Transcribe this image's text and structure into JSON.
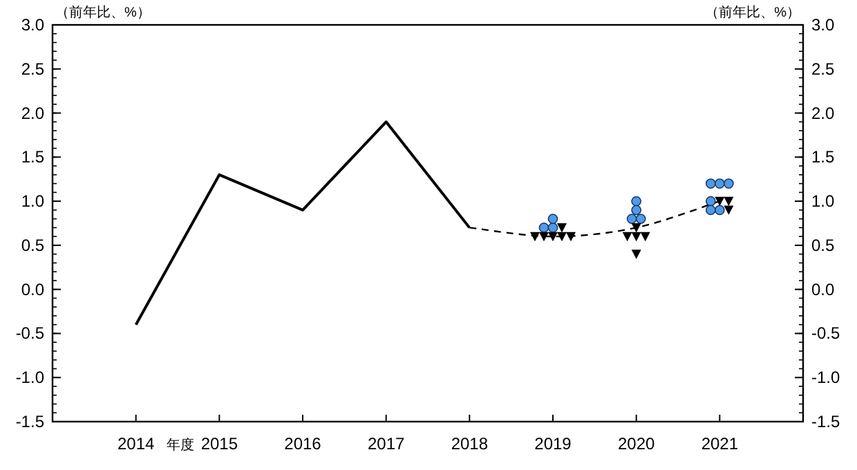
{
  "chart_data": {
    "type": "line",
    "ylabel": "（前年比、%）",
    "y2label": "（前年比、%）",
    "categories": [
      "2014",
      "2015",
      "2016",
      "2017",
      "2018",
      "2019",
      "2020",
      "2021"
    ],
    "annotations": [
      "年度"
    ],
    "ylim": [
      -1.5,
      3.0
    ],
    "yticks": [
      {
        "value": -1.5,
        "label": "-1.5"
      },
      {
        "value": -1.0,
        "label": "-1.0"
      },
      {
        "value": -0.5,
        "label": "-0.5"
      },
      {
        "value": 0,
        "label": "0.0"
      },
      {
        "value": 0.5,
        "label": "0.5"
      },
      {
        "value": 1.0,
        "label": "1.0"
      },
      {
        "value": 1.5,
        "label": "1.5"
      },
      {
        "value": 2.0,
        "label": "2.0"
      },
      {
        "value": 2.5,
        "label": "2.5"
      },
      {
        "value": 3.0,
        "label": "3.0"
      }
    ],
    "y2lim": [
      -1.5,
      3.0
    ],
    "y2ticks": [
      {
        "value": -1.5,
        "label": "-1.5"
      },
      {
        "value": -1.0,
        "label": "-1.0"
      },
      {
        "value": -0.5,
        "label": "-0.5"
      },
      {
        "value": 0,
        "label": "0.0"
      },
      {
        "value": 0.5,
        "label": "0.5"
      },
      {
        "value": 1.0,
        "label": "1.0"
      },
      {
        "value": 1.5,
        "label": "1.5"
      },
      {
        "value": 2.0,
        "label": "2.0"
      },
      {
        "value": 2.5,
        "label": "2.5"
      },
      {
        "value": 3.0,
        "label": "3.0"
      }
    ],
    "grid": false,
    "series": [
      {
        "color": "#000000",
        "line_style": "solid",
        "marker": "none",
        "values": [
          -0.4,
          1.3,
          0.9,
          1.9,
          0.7,
          null,
          null,
          null
        ]
      },
      {
        "color": "#000000",
        "line_style": "dashed",
        "marker": "none",
        "values": [
          null,
          null,
          null,
          null,
          0.7,
          0.6,
          0.7,
          1.0
        ]
      },
      {
        "type": "scatter",
        "color": "#4f9be8",
        "marker": "circle",
        "values": [
          null,
          null,
          null,
          null,
          null,
          0.7,
          1.0,
          1.2
        ]
      },
      {
        "type": "scatter",
        "color": "#4f9be8",
        "marker": "circle",
        "values": [
          null,
          null,
          null,
          null,
          null,
          0.7,
          0.9,
          1.2
        ]
      },
      {
        "type": "scatter",
        "color": "#4f9be8",
        "marker": "circle",
        "values": [
          null,
          null,
          null,
          null,
          null,
          0.8,
          0.8,
          1.2
        ]
      },
      {
        "type": "scatter",
        "color": "#4f9be8",
        "marker": "circle",
        "values": [
          null,
          null,
          null,
          null,
          null,
          null,
          0.8,
          1.0
        ]
      },
      {
        "type": "scatter",
        "color": "#4f9be8",
        "marker": "circle",
        "values": [
          null,
          null,
          null,
          null,
          null,
          null,
          null,
          0.9
        ]
      },
      {
        "type": "scatter",
        "color": "#4f9be8",
        "marker": "circle",
        "values": [
          null,
          null,
          null,
          null,
          null,
          null,
          null,
          0.9
        ]
      },
      {
        "type": "scatter",
        "color": "#000000",
        "marker": "triangle",
        "values": [
          null,
          null,
          null,
          null,
          null,
          0.6,
          0.7,
          1.0
        ]
      },
      {
        "type": "scatter",
        "color": "#000000",
        "marker": "triangle",
        "values": [
          null,
          null,
          null,
          null,
          null,
          0.6,
          0.6,
          1.0
        ]
      },
      {
        "type": "scatter",
        "color": "#000000",
        "marker": "triangle",
        "values": [
          null,
          null,
          null,
          null,
          null,
          0.6,
          0.6,
          0.9
        ]
      },
      {
        "type": "scatter",
        "color": "#000000",
        "marker": "triangle",
        "values": [
          null,
          null,
          null,
          null,
          null,
          0.6,
          0.6,
          null
        ]
      },
      {
        "type": "scatter",
        "color": "#000000",
        "marker": "triangle",
        "values": [
          null,
          null,
          null,
          null,
          null,
          0.6,
          0.4,
          null
        ]
      },
      {
        "type": "scatter",
        "color": "#000000",
        "marker": "triangle",
        "values": [
          null,
          null,
          null,
          null,
          null,
          0.7,
          null,
          null
        ]
      }
    ]
  }
}
